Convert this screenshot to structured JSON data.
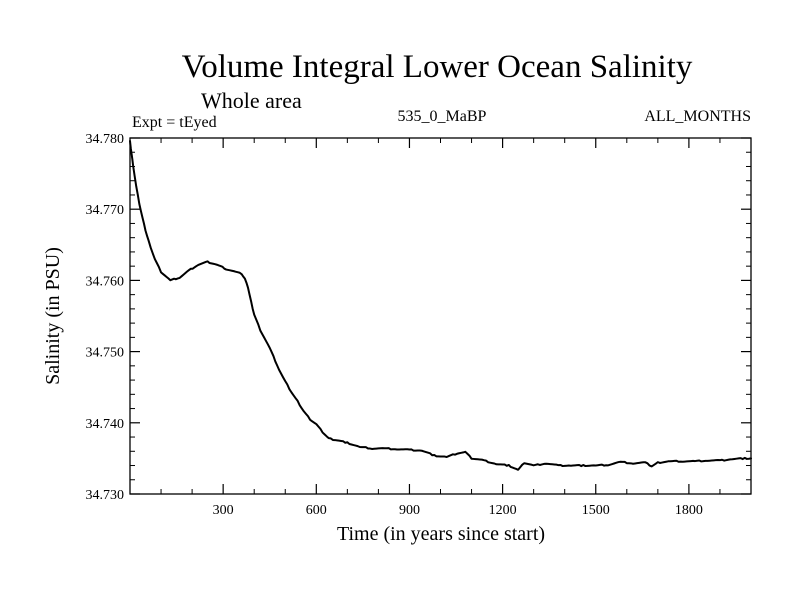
{
  "chart_data": {
    "type": "line",
    "title": "Volume Integral Lower Ocean Salinity",
    "subtitle": "Whole area",
    "left_label": "Expt = tEyed",
    "center_label": "535_0_MaBP",
    "right_label": "ALL_MONTHS",
    "xlabel": "Time (in years since start)",
    "ylabel": "Salinity (in PSU)",
    "xlim": [
      0,
      2000
    ],
    "ylim": [
      34.73,
      34.78
    ],
    "xticks": [
      300,
      600,
      900,
      1200,
      1500,
      1800
    ],
    "xtick_labels": [
      "300",
      "600",
      "900",
      "1200",
      "1500",
      "1800"
    ],
    "yticks": [
      34.73,
      34.74,
      34.75,
      34.76,
      34.77,
      34.78
    ],
    "ytick_labels": [
      "34.730",
      "34.740",
      "34.750",
      "34.760",
      "34.770",
      "34.780"
    ],
    "grid": false,
    "series": [
      {
        "name": "Salinity",
        "color": "#000000",
        "x": [
          0,
          5,
          10,
          20,
          30,
          40,
          50,
          60,
          80,
          100,
          130,
          160,
          190,
          220,
          250,
          280,
          310,
          340,
          360,
          370,
          380,
          390,
          400,
          420,
          450,
          480,
          500,
          520,
          540,
          560,
          580,
          600,
          620,
          640,
          660,
          700,
          740,
          780,
          820,
          860,
          900,
          940,
          980,
          1020,
          1060,
          1080,
          1100,
          1140,
          1180,
          1220,
          1250,
          1270,
          1300,
          1340,
          1380,
          1420,
          1460,
          1500,
          1540,
          1580,
          1620,
          1660,
          1680,
          1700,
          1740,
          1780,
          1820,
          1860,
          1900,
          1940,
          1980,
          2000
        ],
        "values": [
          34.7795,
          34.7778,
          34.7762,
          34.7732,
          34.7708,
          34.7688,
          34.767,
          34.7655,
          34.763,
          34.7612,
          34.76,
          34.7604,
          34.7614,
          34.7622,
          34.7626,
          34.7622,
          34.7616,
          34.7612,
          34.7609,
          34.7602,
          34.759,
          34.757,
          34.7552,
          34.753,
          34.7505,
          34.7475,
          34.7458,
          34.7443,
          34.743,
          34.7416,
          34.7405,
          34.7398,
          34.7387,
          34.7378,
          34.7376,
          34.7372,
          34.7366,
          34.7364,
          34.7364,
          34.7363,
          34.7362,
          34.7361,
          34.7354,
          34.7352,
          34.7358,
          34.7359,
          34.735,
          34.7347,
          34.7342,
          34.734,
          34.7334,
          34.7344,
          34.734,
          34.7343,
          34.734,
          34.734,
          34.734,
          34.734,
          34.7341,
          34.7345,
          34.7343,
          34.7344,
          34.7339,
          34.7344,
          34.7346,
          34.7346,
          34.7346,
          34.7347,
          34.7347,
          34.7349,
          34.735,
          34.735
        ]
      }
    ]
  }
}
